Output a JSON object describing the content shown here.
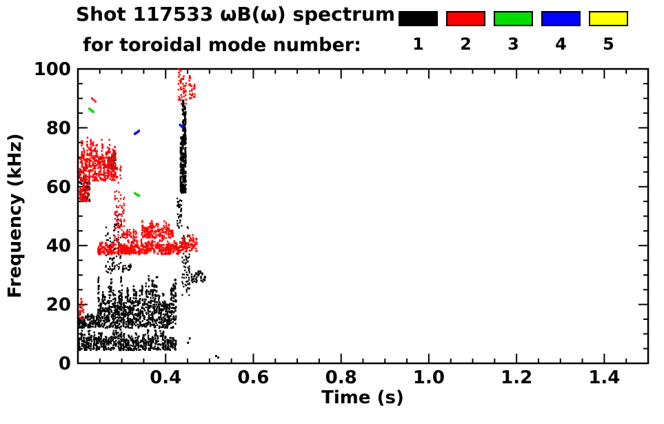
{
  "chart_data": {
    "type": "scatter",
    "title": "Shot 117533 ωB(ω) spectrum",
    "subtitle": "for toroidal mode number:",
    "xlabel": "Time (s)",
    "ylabel": "Frequency (kHz)",
    "xlim": [
      0.2,
      1.5
    ],
    "ylim": [
      0,
      100
    ],
    "grid": false,
    "xticks": {
      "major": [
        0.4,
        0.6,
        0.8,
        1.0,
        1.2,
        1.4
      ],
      "labels": [
        "0.4",
        "0.6",
        "0.8",
        "1.0",
        "1.2",
        "1.4"
      ],
      "minor_step": 0.05
    },
    "yticks": {
      "major": [
        0,
        20,
        40,
        60,
        80,
        100
      ],
      "labels": [
        "0",
        "20",
        "40",
        "60",
        "80",
        "100"
      ],
      "minor_step": 5
    },
    "legend": {
      "position": "top-right",
      "entries": [
        {
          "label": "1",
          "color": "#000000"
        },
        {
          "label": "2",
          "color": "#ff0000"
        },
        {
          "label": "3",
          "color": "#00dd00"
        },
        {
          "label": "4",
          "color": "#0000ff"
        },
        {
          "label": "5",
          "color": "#ffff00"
        }
      ]
    },
    "series": [
      {
        "name": "n=1",
        "mode": 1,
        "color": "#000000",
        "point_r": 1.4,
        "clusters": [
          {
            "t": [
              0.2,
              0.425
            ],
            "f": [
              4.5,
              12
            ],
            "n": 700,
            "r": 1.2,
            "stripes": 40
          },
          {
            "t": [
              0.2,
              0.25
            ],
            "f": [
              12,
              17
            ],
            "n": 150,
            "r": 1.2,
            "stripes": 12
          },
          {
            "t": [
              0.245,
              0.425
            ],
            "f": [
              12,
              30
            ],
            "n": 1100,
            "r": 1.2,
            "stripes": 38
          },
          {
            "t": [
              0.262,
              0.3
            ],
            "f": [
              30,
              52
            ],
            "n": 90,
            "r": 1.1,
            "stripes": 8
          },
          {
            "t": [
              0.203,
              0.228
            ],
            "f": [
              55,
              66
            ],
            "n": 70,
            "r": 1.2,
            "stripes": 6
          },
          {
            "t": [
              0.268,
              0.287
            ],
            "f": [
              66,
              73
            ],
            "n": 50,
            "r": 1.2,
            "stripes": 5
          },
          {
            "t": [
              0.433,
              0.447
            ],
            "f": [
              58,
              99
            ],
            "n": 300,
            "r": 1.3,
            "stripes": 3
          },
          {
            "t": [
              0.437,
              0.455
            ],
            "f": [
              23,
              50
            ],
            "n": 70,
            "r": 1.1,
            "stripes": 6
          },
          {
            "t": [
              0.426,
              0.437
            ],
            "f": [
              46,
              58
            ],
            "n": 40,
            "r": 1.1,
            "stripes": 4
          },
          {
            "t": [
              0.458,
              0.492
            ],
            "f": [
              27.5,
              32
            ],
            "n": 45,
            "r": 1.2,
            "stripes": 7
          },
          {
            "t": [
              0.3,
              0.322
            ],
            "f": [
              31,
              34
            ],
            "n": 25,
            "r": 1.1,
            "stripes": 5
          }
        ],
        "points": [
          [
            0.52,
            2
          ],
          [
            0.515,
            2.5
          ],
          [
            0.455,
            8.5
          ],
          [
            0.451,
            7
          ]
        ]
      },
      {
        "name": "n=2",
        "mode": 2,
        "color": "#ff0000",
        "point_r": 1.4,
        "clusters": [
          {
            "t": [
              0.203,
              0.287
            ],
            "f": [
              62,
              77
            ],
            "n": 500,
            "r": 1.2,
            "stripes": 20
          },
          {
            "t": [
              0.203,
              0.225
            ],
            "f": [
              55,
              63
            ],
            "n": 80,
            "r": 1.2,
            "stripes": 6
          },
          {
            "t": [
              0.283,
              0.307
            ],
            "f": [
              42,
              70
            ],
            "n": 90,
            "r": 1.1,
            "stripes": 6
          },
          {
            "t": [
              0.245,
              0.435
            ],
            "f": [
              37,
              42.5
            ],
            "n": 600,
            "r": 1.2,
            "stripes": 45
          },
          {
            "t": [
              0.435,
              0.472
            ],
            "f": [
              38,
              45
            ],
            "n": 90,
            "r": 1.2,
            "stripes": 10
          },
          {
            "t": [
              0.345,
              0.385
            ],
            "f": [
              42.5,
              50
            ],
            "n": 110,
            "r": 1.2,
            "stripes": 9
          },
          {
            "t": [
              0.385,
              0.418
            ],
            "f": [
              42.5,
              48.5
            ],
            "n": 80,
            "r": 1.2,
            "stripes": 7
          },
          {
            "t": [
              0.3,
              0.335
            ],
            "f": [
              42.5,
              46
            ],
            "n": 50,
            "r": 1.1,
            "stripes": 7
          },
          {
            "t": [
              0.428,
              0.448
            ],
            "f": [
              88,
              100
            ],
            "n": 45,
            "r": 1.2,
            "stripes": 4
          },
          {
            "t": [
              0.452,
              0.468
            ],
            "f": [
              90,
              100
            ],
            "n": 30,
            "r": 1.2,
            "stripes": 3
          },
          {
            "t": [
              0.203,
              0.214
            ],
            "f": [
              15,
              23
            ],
            "n": 30,
            "r": 1.2,
            "stripes": 3
          }
        ],
        "points": [
          [
            0.232,
            90
          ],
          [
            0.236,
            89.5
          ],
          [
            0.24,
            89
          ],
          [
            0.43,
            100
          ],
          [
            0.434,
            99.5
          ]
        ]
      },
      {
        "name": "n=3",
        "mode": 3,
        "color": "#00dd00",
        "point_r": 1.6,
        "clusters": [],
        "points": [
          [
            0.226,
            86.5
          ],
          [
            0.229,
            86.2
          ],
          [
            0.232,
            85.8
          ],
          [
            0.235,
            85.5
          ],
          [
            0.33,
            57.8
          ],
          [
            0.333,
            57.5
          ],
          [
            0.336,
            57.2
          ],
          [
            0.339,
            57.0
          ]
        ]
      },
      {
        "name": "n=4",
        "mode": 4,
        "color": "#0000ff",
        "point_r": 1.6,
        "clusters": [],
        "points": [
          [
            0.33,
            78.0
          ],
          [
            0.333,
            78.3
          ],
          [
            0.336,
            78.6
          ],
          [
            0.339,
            79.0
          ],
          [
            0.433,
            81.0
          ],
          [
            0.436,
            80.6
          ],
          [
            0.439,
            80.2
          ]
        ]
      },
      {
        "name": "n=5",
        "mode": 5,
        "color": "#ffff00",
        "point_r": 1.6,
        "clusters": [],
        "points": []
      }
    ]
  }
}
